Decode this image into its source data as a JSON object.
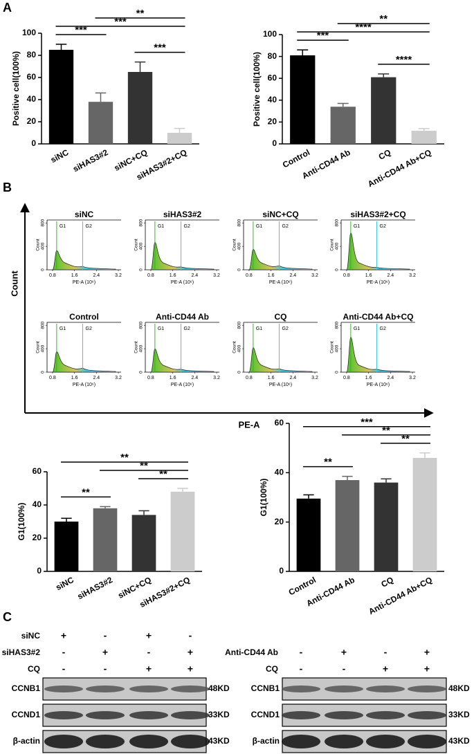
{
  "panels": [
    "A",
    "B",
    "C"
  ],
  "flow_axes": {
    "y_label": "Count",
    "x_label": "PE-A"
  },
  "chart_data": [
    {
      "type": "bar",
      "y_label": "Positive cell(100%)",
      "categories": [
        "siNC",
        "siHAS3#2",
        "siNC+CQ",
        "siHAS3#2+CQ"
      ],
      "values": [
        85,
        38,
        65,
        10
      ],
      "errors": [
        5,
        8,
        9,
        4
      ],
      "colors": [
        "#000000",
        "#666666",
        "#333333",
        "#cccccc"
      ],
      "ylim": [
        0,
        100
      ],
      "yticks": [
        0,
        20,
        40,
        60,
        80,
        100
      ],
      "annotations": [
        {
          "text": "***",
          "from": 0,
          "to": 1
        },
        {
          "text": "***",
          "from": 2,
          "to": 3
        },
        {
          "text": "***",
          "from": 0,
          "to": 3
        },
        {
          "text": "**",
          "from": 1,
          "to": 3
        }
      ]
    },
    {
      "type": "bar",
      "y_label": "Positive cell(100%)",
      "categories": [
        "Control",
        "Anti-CD44 Ab",
        "CQ",
        "Anti-CD44 Ab+CQ"
      ],
      "values": [
        81,
        34,
        61,
        12
      ],
      "errors": [
        5,
        3,
        3,
        2
      ],
      "colors": [
        "#000000",
        "#666666",
        "#333333",
        "#cccccc"
      ],
      "ylim": [
        0,
        100
      ],
      "yticks": [
        0,
        20,
        40,
        60,
        80,
        100
      ],
      "annotations": [
        {
          "text": "***",
          "from": 0,
          "to": 1
        },
        {
          "text": "****",
          "from": 2,
          "to": 3
        },
        {
          "text": "****",
          "from": 0,
          "to": 3
        },
        {
          "text": "**",
          "from": 1,
          "to": 3
        }
      ]
    },
    {
      "type": "flow",
      "title": "siNC",
      "x_label": "PE-A (10⁶)",
      "y_label": "Count",
      "xlim": [
        0.6,
        3.3
      ],
      "ylim": [
        0,
        850
      ],
      "xticks": [
        0.8,
        1.6,
        2.4,
        3.2
      ],
      "yticks": [
        0,
        400,
        800
      ],
      "gates": [
        {
          "label": "G1",
          "value": 0.95
        },
        {
          "label": "G2",
          "value": 1.9
        }
      ],
      "x": [
        0.95,
        1.9
      ],
      "values": [
        330,
        60
      ]
    },
    {
      "type": "flow",
      "title": "siHAS3#2",
      "x_label": "PE-A (10⁶)",
      "y_label": "Count",
      "xlim": [
        0.6,
        3.3
      ],
      "ylim": [
        0,
        850
      ],
      "xticks": [
        0.8,
        1.6,
        2.4,
        3.2
      ],
      "yticks": [
        0,
        400,
        800
      ],
      "gates": [
        {
          "label": "G1",
          "value": 0.95
        },
        {
          "label": "G2",
          "value": 1.9
        }
      ],
      "x": [
        0.95,
        1.9
      ],
      "values": [
        470,
        50
      ]
    },
    {
      "type": "flow",
      "title": "siNC+CQ",
      "x_label": "PE-A (10⁶)",
      "y_label": "Count",
      "xlim": [
        0.6,
        3.3
      ],
      "ylim": [
        0,
        850
      ],
      "xticks": [
        0.8,
        1.6,
        2.4,
        3.2
      ],
      "yticks": [
        0,
        400,
        800
      ],
      "gates": [
        {
          "label": "G1",
          "value": 0.95
        },
        {
          "label": "G2",
          "value": 1.9
        }
      ],
      "x": [
        0.95,
        1.9
      ],
      "values": [
        350,
        70
      ]
    },
    {
      "type": "flow",
      "title": "siHAS3#2+CQ",
      "x_label": "PE-A (10⁶)",
      "y_label": "Count",
      "xlim": [
        0.6,
        3.3
      ],
      "ylim": [
        0,
        850
      ],
      "xticks": [
        0.8,
        1.6,
        2.4,
        3.2
      ],
      "yticks": [
        0,
        400,
        800
      ],
      "gates": [
        {
          "label": "G1",
          "value": 0.95
        },
        {
          "label": "G2",
          "value": 1.9
        }
      ],
      "x": [
        0.95,
        1.9
      ],
      "values": [
        630,
        40
      ]
    },
    {
      "type": "flow",
      "title": "Control",
      "x_label": "PE-A (10⁶)",
      "y_label": "Count",
      "xlim": [
        0.6,
        3.3
      ],
      "ylim": [
        0,
        850
      ],
      "xticks": [
        0.8,
        1.6,
        2.4,
        3.2
      ],
      "yticks": [
        0,
        400,
        800
      ],
      "gates": [
        {
          "label": "G1",
          "value": 0.95
        },
        {
          "label": "G2",
          "value": 1.9
        }
      ],
      "x": [
        0.95,
        1.9
      ],
      "values": [
        350,
        70
      ]
    },
    {
      "type": "flow",
      "title": "Anti-CD44 Ab",
      "x_label": "PE-A (10⁶)",
      "y_label": "Count",
      "xlim": [
        0.6,
        3.3
      ],
      "ylim": [
        0,
        850
      ],
      "xticks": [
        0.8,
        1.6,
        2.4,
        3.2
      ],
      "yticks": [
        0,
        400,
        800
      ],
      "gates": [
        {
          "label": "G1",
          "value": 0.95
        },
        {
          "label": "G2",
          "value": 1.9
        }
      ],
      "x": [
        0.95,
        1.9
      ],
      "values": [
        400,
        50
      ]
    },
    {
      "type": "flow",
      "title": "CQ",
      "x_label": "PE-A (10⁶)",
      "y_label": "Count",
      "xlim": [
        0.6,
        3.3
      ],
      "ylim": [
        0,
        850
      ],
      "xticks": [
        0.8,
        1.6,
        2.4,
        3.2
      ],
      "yticks": [
        0,
        400,
        800
      ],
      "gates": [
        {
          "label": "G1",
          "value": 0.95
        },
        {
          "label": "G2",
          "value": 1.9
        }
      ],
      "x": [
        0.95,
        1.9
      ],
      "values": [
        420,
        60
      ]
    },
    {
      "type": "flow",
      "title": "Anti-CD44 Ab+CQ",
      "x_label": "PE-A (10⁶)",
      "y_label": "Count",
      "xlim": [
        0.6,
        3.3
      ],
      "ylim": [
        0,
        850
      ],
      "xticks": [
        0.8,
        1.6,
        2.4,
        3.2
      ],
      "yticks": [
        0,
        400,
        800
      ],
      "gates": [
        {
          "label": "G1",
          "value": 0.95
        },
        {
          "label": "G2",
          "value": 1.9
        }
      ],
      "x": [
        0.95,
        1.9
      ],
      "values": [
        600,
        50
      ]
    },
    {
      "type": "bar",
      "y_label": "G1(100%)",
      "categories": [
        "siNC",
        "siHAS3#2",
        "siNC+CQ",
        "siHAS3#2+CQ"
      ],
      "values": [
        30,
        38,
        34,
        48
      ],
      "errors": [
        2,
        1,
        2.5,
        2
      ],
      "colors": [
        "#000000",
        "#666666",
        "#333333",
        "#cccccc"
      ],
      "ylim": [
        0,
        60
      ],
      "yticks": [
        0,
        20,
        40,
        60
      ],
      "annotations": [
        {
          "text": "**",
          "from": 0,
          "to": 1
        },
        {
          "text": "**",
          "from": 2,
          "to": 3
        },
        {
          "text": "**",
          "from": 1,
          "to": 3
        },
        {
          "text": "**",
          "from": 0,
          "to": 3
        }
      ]
    },
    {
      "type": "bar",
      "y_label": "G1(100%)",
      "categories": [
        "Control",
        "Anti-CD44 Ab",
        "CQ",
        "Anti-CD44 Ab+CQ"
      ],
      "values": [
        29.5,
        37,
        36,
        46
      ],
      "errors": [
        1.5,
        1.5,
        1.5,
        2
      ],
      "colors": [
        "#000000",
        "#666666",
        "#333333",
        "#cccccc"
      ],
      "ylim": [
        0,
        60
      ],
      "yticks": [
        0,
        20,
        40,
        60
      ],
      "annotations": [
        {
          "text": "**",
          "from": 0,
          "to": 1
        },
        {
          "text": "**",
          "from": 2,
          "to": 3
        },
        {
          "text": "**",
          "from": 1,
          "to": 3
        },
        {
          "text": "***",
          "from": 0,
          "to": 3
        }
      ]
    }
  ],
  "western_blot": [
    {
      "conditions": [
        {
          "name": "siNC",
          "values": [
            "+",
            "-",
            "+",
            "-"
          ]
        },
        {
          "name": "siHAS3#2",
          "values": [
            "-",
            "+",
            "-",
            "+"
          ]
        },
        {
          "name": "CQ",
          "values": [
            "-",
            "-",
            "+",
            "+"
          ]
        }
      ],
      "bands": [
        {
          "name": "CCNB1",
          "size": "48KD"
        },
        {
          "name": "CCND1",
          "size": "33KD"
        },
        {
          "name": "β-actin",
          "size": "43KD"
        }
      ]
    },
    {
      "conditions": [
        {
          "name": "Anti-CD44 Ab",
          "values": [
            "-",
            "+",
            "-",
            "+"
          ]
        },
        {
          "name": "CQ",
          "values": [
            "-",
            "-",
            "+",
            "+"
          ]
        }
      ],
      "bands": [
        {
          "name": "CCNB1",
          "size": "48KD"
        },
        {
          "name": "CCND1",
          "size": "33KD"
        },
        {
          "name": "β-actin",
          "size": "43KD"
        }
      ]
    }
  ]
}
